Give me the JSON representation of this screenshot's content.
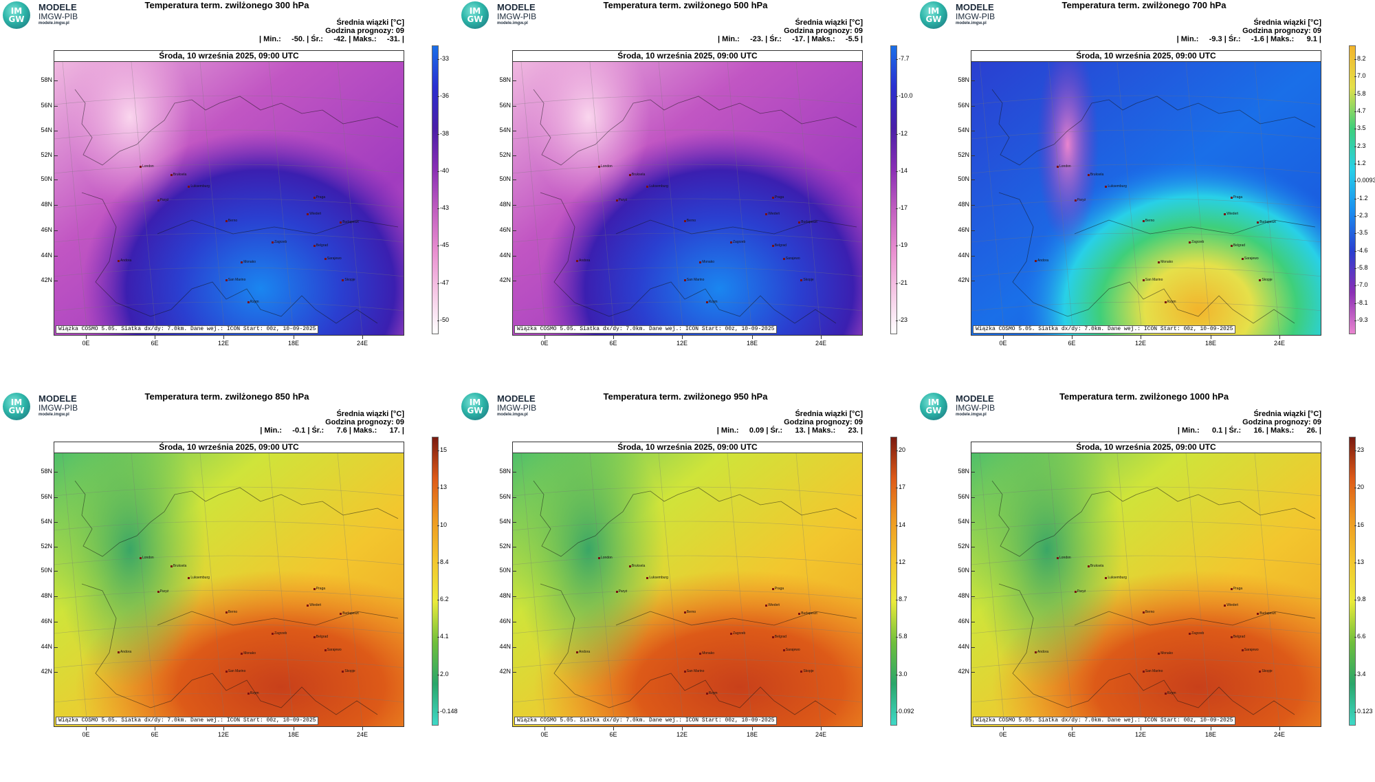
{
  "logo": {
    "line1": "MODELE",
    "line2": "IMGW-PIB",
    "line3": "modele.imgw.pl",
    "badge1": "IM",
    "badge2": "GW"
  },
  "common": {
    "date_line": "Środa, 10 września 2025, 09:00 UTC",
    "subtitle": "Średnia wiązki [°C]",
    "forecast_hour": "Godzina prognozy: 09",
    "footer": "Wiązka COSMO 5.05. Siatka dx/dy: 7.0km. Dane wej.: ICON Start: 00z, 10-09-2025",
    "lat_labels": [
      "58N",
      "56N",
      "54N",
      "52N",
      "50N",
      "48N",
      "46N",
      "44N",
      "42N"
    ],
    "lon_labels": [
      "0E",
      "6E",
      "12E",
      "18E",
      "24E"
    ],
    "cities": [
      "London",
      "Bruksela",
      "Luksemburg",
      "Paryż",
      "Praga",
      "Wiedeń",
      "Budapeszt",
      "Berno",
      "Zagrzeb",
      "Belgrad",
      "Sarajewo",
      "Monako",
      "San Marino",
      "Skopje",
      "Rzym",
      "Andora"
    ]
  },
  "panels": [
    {
      "title": "Temperatura term. zwilżonego 300 hPa",
      "stats": "| Min.:     -50. | Śr.:     -42. | Maks.:     -31. |",
      "colorbar_labels": [
        "-33",
        "-36",
        "-38",
        "-40",
        "-43",
        "-45",
        "-47",
        "-50"
      ],
      "palette": "cold",
      "colors": [
        "#ffffff",
        "#f6c9e6",
        "#e98fd0",
        "#c15fc0",
        "#8a2fb5",
        "#4a1fa8",
        "#2a2fd0",
        "#1a6fe8"
      ]
    },
    {
      "title": "Temperatura term. zwilżonego 500 hPa",
      "stats": "| Min.:     -23. | Śr.:     -17. | Maks.:     -5.5 |",
      "colorbar_labels": [
        "-7.7",
        "-10.0",
        "-12",
        "-14",
        "-17",
        "-19",
        "-21",
        "-23"
      ],
      "palette": "cold",
      "colors": [
        "#ffffff",
        "#f6c9e6",
        "#e98fd0",
        "#c15fc0",
        "#8a2fb5",
        "#4a1fa8",
        "#2a2fd0",
        "#1a6fe8"
      ]
    },
    {
      "title": "Temperatura term. zwilżonego 700 hPa",
      "stats": "| Min.:     -9.3 | Śr.:     -1.6 | Maks.:      9.1 |",
      "colorbar_labels": [
        "8.2",
        "7.0",
        "5.8",
        "4.7",
        "3.5",
        "2.3",
        "1.2",
        "0.0093",
        "-1.2",
        "-2.3",
        "-3.5",
        "-4.6",
        "-5.8",
        "-7.0",
        "-8.1",
        "-9.3"
      ],
      "palette": "mixed",
      "colors": [
        "#e985cf",
        "#8a2fb5",
        "#2a3fd0",
        "#1a8ff0",
        "#28d0e8",
        "#3fcf7a",
        "#e5e04a",
        "#f2b42c"
      ]
    },
    {
      "title": "Temperatura term. zwilżonego 850 hPa",
      "stats": "| Min.:     -0.1 | Śr.:      7.6 | Maks.:      17. |",
      "colorbar_labels": [
        "15",
        "13",
        "10",
        "8.4",
        "6.2",
        "4.1",
        "2.0",
        "-0.148"
      ],
      "palette": "warm",
      "colors": [
        "#3fd9c8",
        "#2aa66a",
        "#6fbf3c",
        "#eaea3a",
        "#f3c62e",
        "#ee9a22",
        "#dd5a18",
        "#7a1a10"
      ]
    },
    {
      "title": "Temperatura term. zwilżonego 950 hPa",
      "stats": "| Min.:     0.09 | Śr.:      13. | Maks.:      23. |",
      "colorbar_labels": [
        "20",
        "17",
        "14",
        "12",
        "8.7",
        "5.8",
        "3.0",
        "0.092"
      ],
      "palette": "warm",
      "colors": [
        "#3fd9c8",
        "#2aa66a",
        "#6fbf3c",
        "#eaea3a",
        "#f3c62e",
        "#ee9a22",
        "#dd5a18",
        "#7a1a10"
      ]
    },
    {
      "title": "Temperatura term. zwilżonego 1000 hPa",
      "stats": "| Min.:      0.1 | Śr.:      16. | Maks.:      26. |",
      "colorbar_labels": [
        "23",
        "20",
        "16",
        "13",
        "9.8",
        "6.6",
        "3.4",
        "0.123"
      ],
      "palette": "warm",
      "colors": [
        "#3fd9c8",
        "#2aa66a",
        "#6fbf3c",
        "#eaea3a",
        "#f3c62e",
        "#ee9a22",
        "#dd5a18",
        "#7a1a10"
      ]
    }
  ]
}
